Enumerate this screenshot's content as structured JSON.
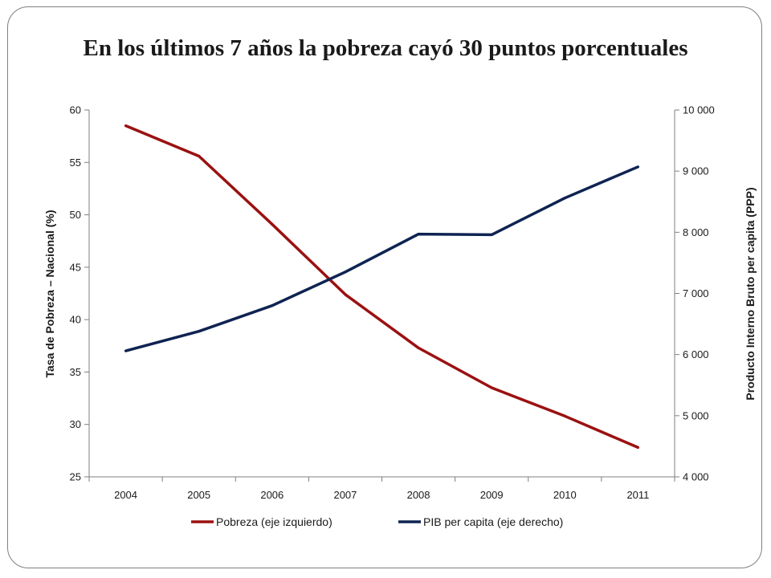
{
  "title": "En los últimos 7 años la pobreza cayó 30 puntos porcentuales",
  "chart_data": {
    "type": "line",
    "x": [
      "2004",
      "2005",
      "2006",
      "2007",
      "2008",
      "2009",
      "2010",
      "2011"
    ],
    "y_left": {
      "label": "Tasa de Pobreza – Nacional (%)",
      "ylim": [
        25,
        60
      ],
      "ticks": [
        "25",
        "30",
        "35",
        "40",
        "45",
        "50",
        "55",
        "60"
      ]
    },
    "y_right": {
      "label": "Producto Interno Bruto  per capita (PPP)",
      "ylim": [
        4000,
        10000
      ],
      "ticks": [
        "4 000",
        "5 000",
        "6 000",
        "7 000",
        "8 000",
        "9 000",
        "10 000"
      ]
    },
    "series": [
      {
        "name": "Pobreza (eje izquierdo)",
        "axis": "left",
        "color": "#9b1111",
        "values": [
          58.5,
          55.6,
          49.1,
          42.4,
          37.3,
          33.5,
          30.8,
          27.8
        ]
      },
      {
        "name": "PIB per capita (eje derecho)",
        "axis": "right",
        "color": "#0f2352",
        "values": [
          6060,
          6380,
          6800,
          7350,
          7970,
          7960,
          8560,
          9070
        ]
      }
    ],
    "grid": false,
    "legend": "bottom"
  }
}
